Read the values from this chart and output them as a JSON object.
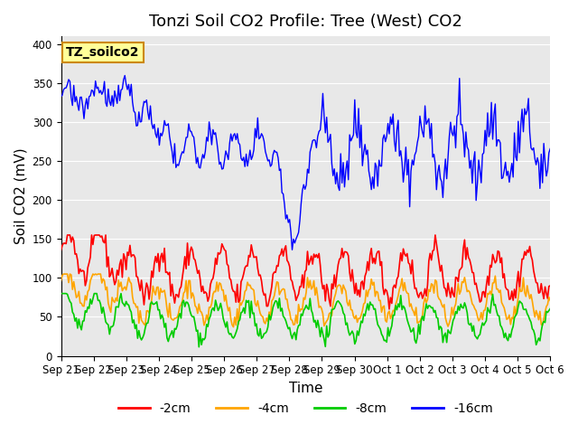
{
  "title": "Tonzi Soil CO2 Profile: Tree (West) CO2",
  "ylabel": "Soil CO2 (mV)",
  "xlabel": "Time",
  "annotation": "TZ_soilco2",
  "ylim": [
    0,
    410
  ],
  "yticks": [
    0,
    50,
    100,
    150,
    200,
    250,
    300,
    350,
    400
  ],
  "xtick_labels": [
    "Sep 21",
    "Sep 22",
    "Sep 23",
    "Sep 24",
    "Sep 25",
    "Sep 26",
    "Sep 27",
    "Sep 28",
    "Sep 29",
    "Sep 30",
    "Oct 1",
    "Oct 2",
    "Oct 3",
    "Oct 4",
    "Oct 5",
    "Oct 6"
  ],
  "series_colors": {
    "-2cm": "#ff0000",
    "-4cm": "#ffa500",
    "-8cm": "#00cc00",
    "-16cm": "#0000ff"
  },
  "legend_labels": [
    "-2cm",
    "-4cm",
    "-8cm",
    "-16cm"
  ],
  "bg_color": "#e8e8e8",
  "annotation_bg": "#ffff99",
  "annotation_border": "#cc8800",
  "title_fontsize": 13,
  "axis_label_fontsize": 11,
  "tick_fontsize": 8.5,
  "legend_fontsize": 10
}
